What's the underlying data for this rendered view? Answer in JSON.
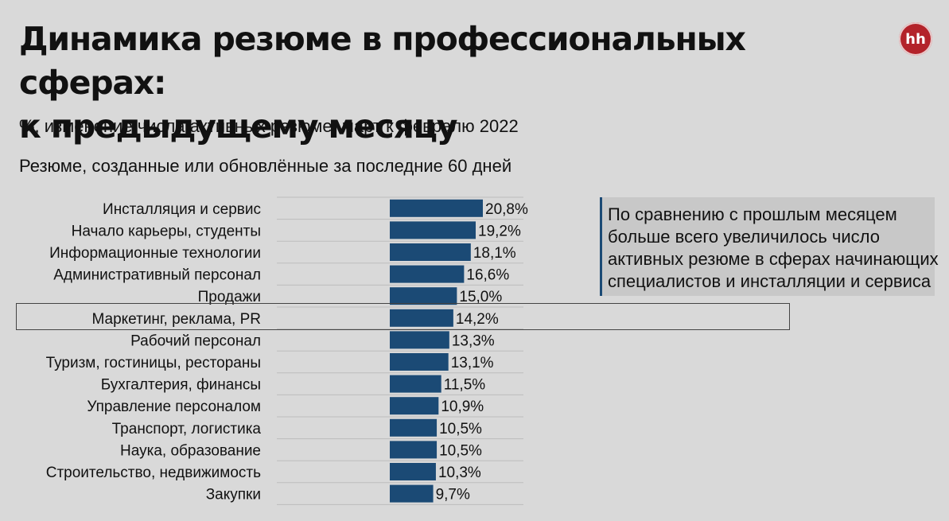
{
  "title_line1": "Динамика резюме в профессиональных сферах:",
  "title_line2": "к предыдущему месяцу",
  "logo_text": "hh",
  "subtitle": "%, изменение числа активных резюме, март к февралю 2022",
  "subtitle2": "Резюме, созданные или обновлённые за последние 60 дней",
  "callout": "По сравнению с прошлым месяцем больше всего увеличилось число активных резюме в сферах начинающих специалистов и инсталляции и сервиса",
  "colors": {
    "bar": "#1b4a75",
    "background": "#d9d9d9",
    "accent": "#b3232a"
  },
  "chart_data": {
    "type": "bar",
    "orientation": "horizontal",
    "categories": [
      "Инсталляция и сервис",
      "Начало карьеры, студенты",
      "Информационные технологии",
      "Административный персонал",
      "Продажи",
      "Маркетинг, реклама, PR",
      "Рабочий персонал",
      "Туризм, гостиницы, рестораны",
      "Бухгалтерия, финансы",
      "Управление персоналом",
      "Транспорт, логистика",
      "Наука, образование",
      "Строительство, недвижимость",
      "Закупки"
    ],
    "values": [
      20.8,
      19.2,
      18.1,
      16.6,
      15.0,
      14.2,
      13.3,
      13.1,
      11.5,
      10.9,
      10.5,
      10.5,
      10.3,
      9.7
    ],
    "labels": [
      "20,8%",
      "19,2%",
      "18,1%",
      "16,6%",
      "15,0%",
      "14,2%",
      "13,3%",
      "13,1%",
      "11,5%",
      "10,9%",
      "10,5%",
      "10,5%",
      "10,3%",
      "9,7%"
    ],
    "highlighted_category": "Маркетинг, реклама, PR",
    "xlim": [
      0,
      20.8
    ],
    "grid": true
  }
}
